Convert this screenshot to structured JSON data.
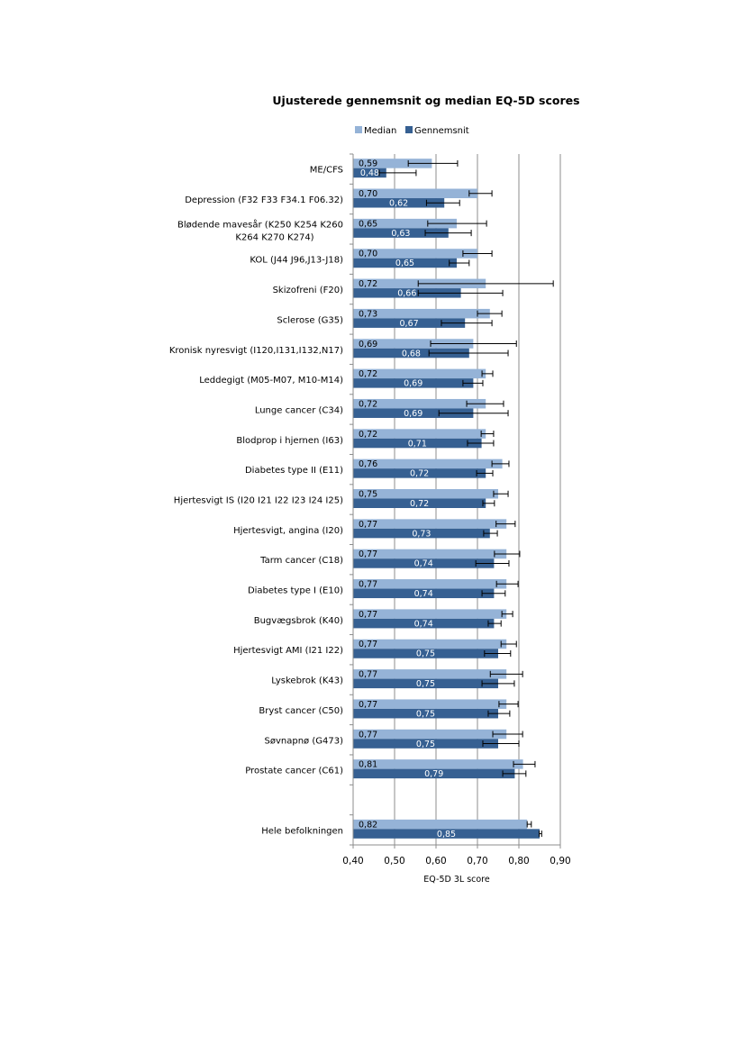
{
  "chart_data": {
    "type": "bar",
    "orientation": "horizontal",
    "title": "Ujusterede gennemsnit og median EQ-5D scores",
    "xlabel": "EQ-5D 3L score",
    "ylabel": "",
    "xlim": [
      0.4,
      0.9
    ],
    "x_ticks": [
      "0,40",
      "0,50",
      "0,60",
      "0,70",
      "0,80",
      "0,90"
    ],
    "x_tick_values": [
      0.4,
      0.5,
      0.6,
      0.7,
      0.8,
      0.9
    ],
    "grid": "vertical",
    "legend_position": "top",
    "categories": [
      "ME/CFS",
      "Depression (F32 F33 F34.1 F06.32)",
      "Blødende mavesår (K250 K254 K260|K264 K270 K274)",
      "KOL (J44 J96,J13-J18)",
      "Skizofreni (F20)",
      "Sclerose (G35)",
      "Kronisk nyresvigt (I120,I131,I132,N17)",
      "Leddegigt (M05-M07, M10-M14)",
      "Lunge cancer (C34)",
      "Blodprop i hjernen (I63)",
      "Diabetes type II (E11)",
      "Hjertesvigt IS (I20 I21 I22 I23 I24 I25)",
      "Hjertesvigt, angina (I20)",
      "Tarm cancer (C18)",
      "Diabetes type I (E10)",
      "Bugvægsbrok (K40)",
      "Hjertesvigt AMI (I21 I22)",
      "Lyskebrok (K43)",
      "Bryst cancer (C50)",
      "Søvnapnø (G473)",
      "Prostate cancer (C61)",
      "",
      "Hele befolkningen"
    ],
    "series": [
      {
        "name": "Median",
        "color": "#95B3D7",
        "label_color": "#000000",
        "values": [
          0.59,
          0.7,
          0.65,
          0.7,
          0.72,
          0.73,
          0.69,
          0.72,
          0.72,
          0.72,
          0.76,
          0.75,
          0.77,
          0.77,
          0.77,
          0.77,
          0.77,
          0.77,
          0.77,
          0.77,
          0.81,
          null,
          0.82
        ],
        "labels": [
          "0,59",
          "0,70",
          "0,65",
          "0,70",
          "0,72",
          "0,73",
          "0,69",
          "0,72",
          "0,72",
          "0,72",
          "0,76",
          "0,75",
          "0,77",
          "0,77",
          "0,77",
          "0,77",
          "0,77",
          "0,77",
          "0,77",
          "0,77",
          "0,81",
          "",
          "0,82"
        ],
        "error_low": [
          0.533,
          0.68,
          0.58,
          0.665,
          0.557,
          0.7,
          0.587,
          0.711,
          0.674,
          0.709,
          0.735,
          0.739,
          0.745,
          0.741,
          0.746,
          0.759,
          0.757,
          0.731,
          0.752,
          0.737,
          0.787,
          null,
          0.82
        ],
        "error_high": [
          0.652,
          0.735,
          0.722,
          0.735,
          0.883,
          0.759,
          0.794,
          0.737,
          0.763,
          0.739,
          0.776,
          0.774,
          0.791,
          0.802,
          0.798,
          0.785,
          0.794,
          0.809,
          0.798,
          0.809,
          0.839,
          null,
          0.83
        ]
      },
      {
        "name": "Gennemsnit",
        "color": "#366092",
        "label_color": "#ffffff",
        "values": [
          0.48,
          0.62,
          0.63,
          0.65,
          0.66,
          0.67,
          0.68,
          0.69,
          0.69,
          0.71,
          0.72,
          0.72,
          0.73,
          0.74,
          0.74,
          0.74,
          0.75,
          0.75,
          0.75,
          0.75,
          0.79,
          null,
          0.85
        ],
        "labels": [
          "0,48",
          "0,62",
          "0,63",
          "0,65",
          "0,66",
          "0,67",
          "0,68",
          "0,69",
          "0,69",
          "0,71",
          "0,72",
          "0,72",
          "0,73",
          "0,74",
          "0,74",
          "0,74",
          "0,75",
          "0,75",
          "0,75",
          "0,75",
          "0,79",
          "",
          "0,85"
        ],
        "error_low": [
          0.463,
          0.577,
          0.574,
          0.632,
          0.557,
          0.613,
          0.583,
          0.665,
          0.607,
          0.676,
          0.698,
          0.713,
          0.715,
          0.696,
          0.711,
          0.726,
          0.717,
          0.711,
          0.726,
          0.713,
          0.761,
          null,
          0.849
        ],
        "error_high": [
          0.552,
          0.657,
          0.685,
          0.68,
          0.761,
          0.735,
          0.774,
          0.713,
          0.774,
          0.739,
          0.737,
          0.741,
          0.748,
          0.776,
          0.767,
          0.757,
          0.78,
          0.789,
          0.778,
          0.8,
          0.817,
          null,
          0.855
        ]
      }
    ]
  }
}
